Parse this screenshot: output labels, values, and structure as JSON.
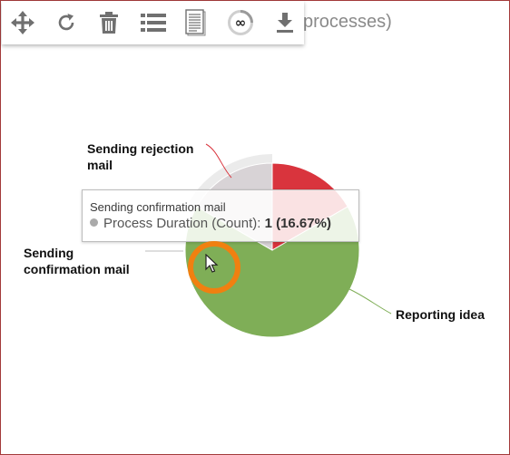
{
  "title_fragment": "processes)",
  "toolbar": [
    {
      "name": "move-icon"
    },
    {
      "name": "refresh-icon"
    },
    {
      "name": "trash-icon"
    },
    {
      "name": "list-icon"
    },
    {
      "name": "document-icon"
    },
    {
      "name": "infinity-icon",
      "glyph": "∞"
    },
    {
      "name": "download-icon"
    }
  ],
  "chart_data": {
    "type": "pie",
    "series_name": "Process Duration (Count)",
    "slices": [
      {
        "label": "Sending rejection mail",
        "value": 1,
        "percent": 16.67,
        "color": "#d9343d"
      },
      {
        "label": "Reporting idea",
        "value": 4,
        "percent": 66.67,
        "color": "#7fae57"
      },
      {
        "label": "Sending confirmation mail",
        "value": 1,
        "percent": 16.67,
        "color": "#d8d3d6",
        "hovered": true
      }
    ]
  },
  "tooltip": {
    "title": "Sending confirmation mail",
    "series": "Process Duration (Count):",
    "value": "1 (16.67%)"
  },
  "labels": {
    "rejection": [
      "Sending rejection",
      "mail"
    ],
    "confirmation": [
      "Sending",
      "confirmation mail"
    ],
    "reporting": [
      "Reporting idea"
    ]
  },
  "colors": {
    "highlight_ring": "#f08010",
    "frame_border": "#a33a3a"
  }
}
